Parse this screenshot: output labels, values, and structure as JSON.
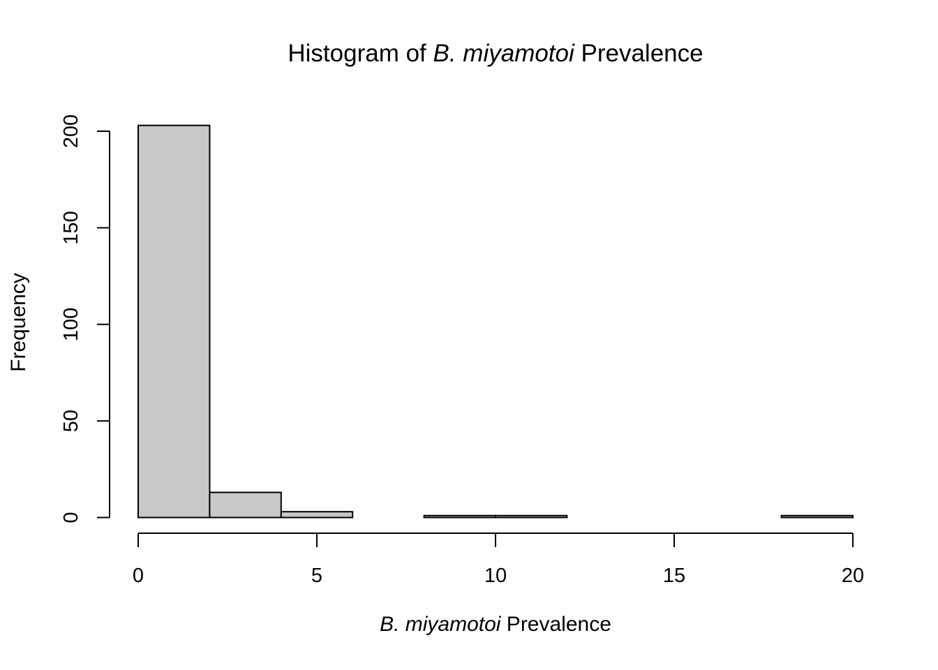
{
  "chart_data": {
    "type": "bar",
    "title": {
      "prefix": "Histogram of ",
      "italic": "B. miyamotoi",
      "suffix": " Prevalence"
    },
    "xlabel": {
      "italic": "B. miyamotoi",
      "suffix": " Prevalence"
    },
    "ylabel": "Frequency",
    "bin_edges": [
      0,
      2,
      4,
      6,
      8,
      10,
      12,
      14,
      16,
      18,
      20
    ],
    "values": [
      203,
      13,
      3,
      0,
      1,
      1,
      0,
      0,
      0,
      1
    ],
    "xlim": [
      0,
      20
    ],
    "ylim": [
      0,
      200
    ],
    "x_ticks": [
      0,
      5,
      10,
      15,
      20
    ],
    "y_ticks": [
      0,
      50,
      100,
      150,
      200
    ],
    "grid": false,
    "colors": {
      "bar_fill": "#c8c8c8",
      "bar_stroke": "#000000"
    }
  }
}
